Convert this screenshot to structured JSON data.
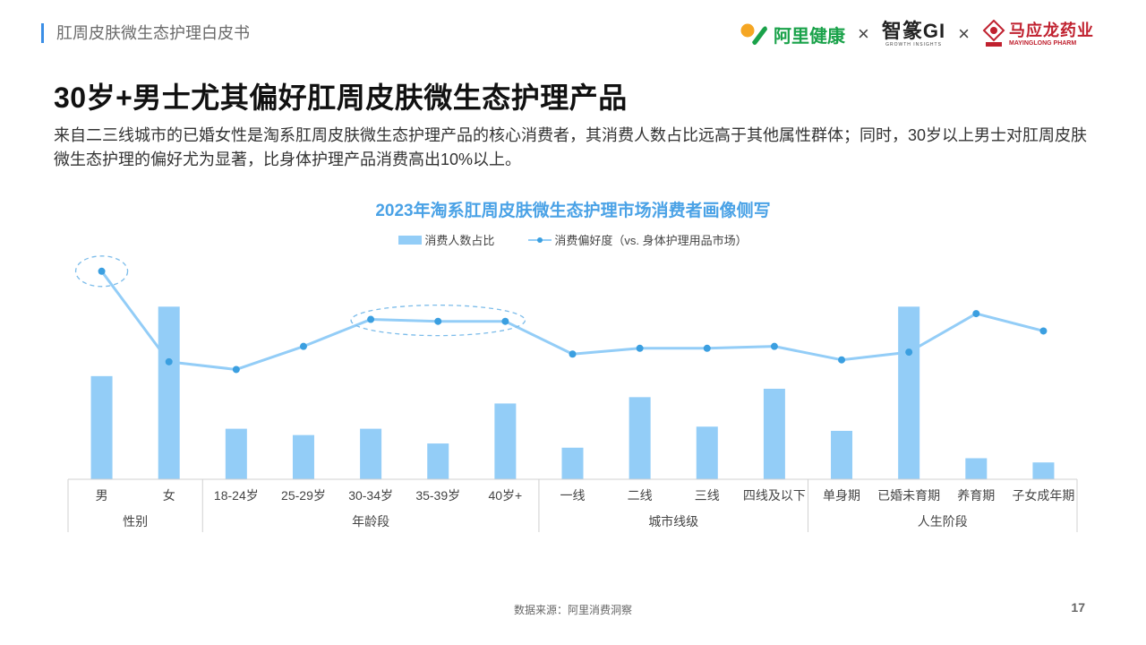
{
  "header": {
    "doc_title": "肛周皮肤微生态护理白皮书"
  },
  "logos": {
    "alihealth": "阿里健康",
    "zhixiang": "智篆GI",
    "zhixiang_sub": "GROWTH INSIGHTS",
    "mayinglong": "马应龙药业",
    "mayinglong_sub": "MAYINGLONG PHARM",
    "times": "×"
  },
  "headline": "30岁+男士尤其偏好肛周皮肤微生态护理产品",
  "description": "来自二三线城市的已婚女性是淘系肛周皮肤微生态护理产品的核心消费者，其消费人数占比远高于其他属性群体；同时，30岁以上男士对肛周皮肤微生态护理的偏好尤为显著，比身体护理产品消费高出10%以上。",
  "chart_data": {
    "type": "bar",
    "title": "2023年淘系肛周皮肤微生态护理市场消费者画像侧写",
    "categories": [
      "男",
      "女",
      "18-24岁",
      "25-29岁",
      "30-34岁",
      "35-39岁",
      "40岁+",
      "一线",
      "二线",
      "三线",
      "四线及以下",
      "单身期",
      "已婚未育期",
      "养育期",
      "子女成年期"
    ],
    "groups": [
      {
        "name": "性别",
        "count": 2
      },
      {
        "name": "年龄段",
        "count": 5
      },
      {
        "name": "城市线级",
        "count": 4
      },
      {
        "name": "人生阶段",
        "count": 4
      }
    ],
    "series": [
      {
        "name": "消费人数占比",
        "kind": "bar",
        "values": [
          49,
          82,
          24,
          21,
          24,
          17,
          36,
          15,
          39,
          25,
          43,
          23,
          82,
          10,
          8
        ]
      },
      {
        "name": "消费偏好度（vs. 身体护理用品市场）",
        "kind": "line",
        "values": [
          108,
          61,
          57,
          69,
          83,
          82,
          82,
          65,
          68,
          68,
          69,
          62,
          66,
          86,
          77
        ]
      }
    ],
    "highlights": [
      0,
      [
        4,
        5,
        6
      ]
    ],
    "colors": {
      "bar": "#93cdf7",
      "line": "#93cdf7",
      "marker": "#3b9fe0",
      "highlight": "#7cbcea",
      "axis": "#d0d0d0"
    }
  },
  "footer": {
    "source": "数据来源：阿里消费洞察",
    "page": "17"
  }
}
